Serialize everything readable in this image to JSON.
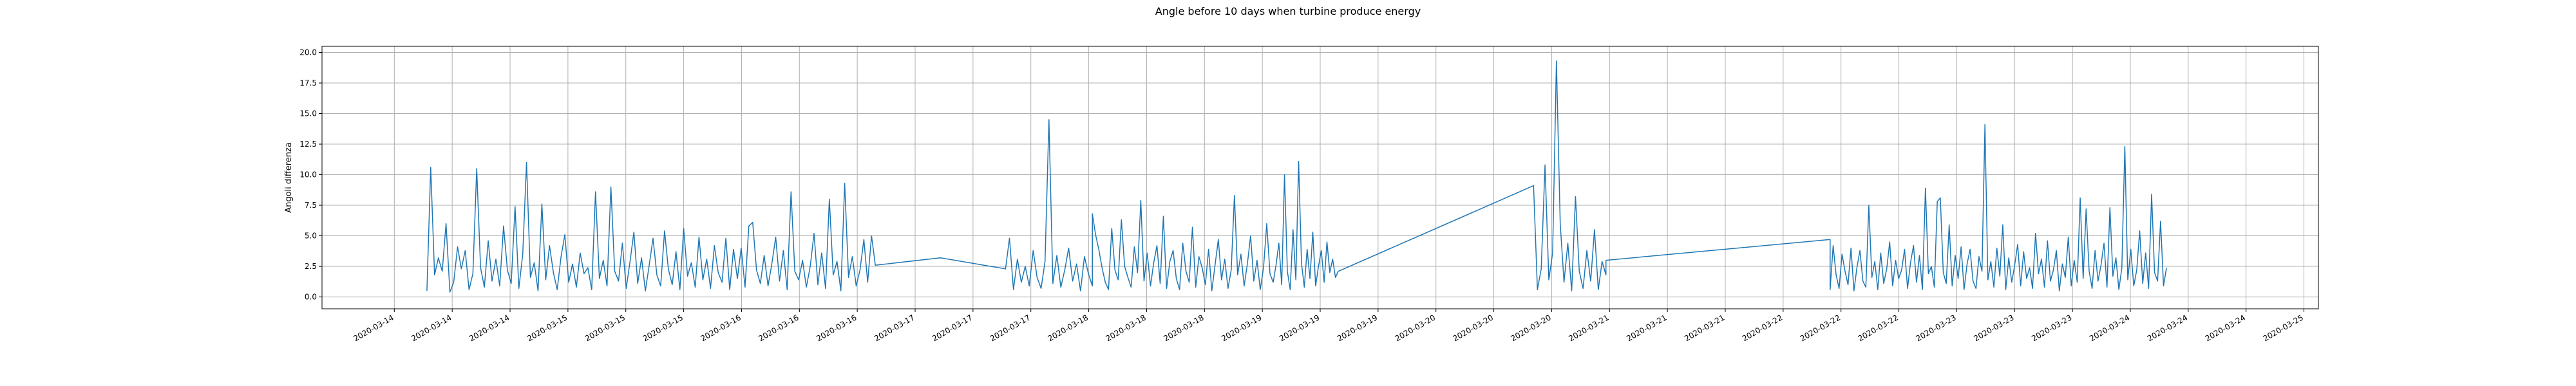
{
  "chart_data": {
    "type": "line",
    "title": "Angle before 10 days when turbine produce energy",
    "xlabel": "",
    "ylabel": "Angoli differenza",
    "grid": true,
    "ylim": [
      -0.97,
      20.5
    ],
    "yticks": [
      "0.0",
      "2.5",
      "5.0",
      "7.5",
      "10.0",
      "12.5",
      "15.0",
      "17.5",
      "20.0"
    ],
    "xticks": [
      "2020-03-14",
      "2020-03-14",
      "2020-03-14",
      "2020-03-15",
      "2020-03-15",
      "2020-03-15",
      "2020-03-16",
      "2020-03-16",
      "2020-03-16",
      "2020-03-17",
      "2020-03-17",
      "2020-03-17",
      "2020-03-18",
      "2020-03-18",
      "2020-03-18",
      "2020-03-19",
      "2020-03-19",
      "2020-03-19",
      "2020-03-20",
      "2020-03-20",
      "2020-03-20",
      "2020-03-21",
      "2020-03-21",
      "2020-03-21",
      "2020-03-22",
      "2020-03-22",
      "2020-03-22",
      "2020-03-23",
      "2020-03-23",
      "2020-03-23",
      "2020-03-24",
      "2020-03-24",
      "2020-03-24",
      "2020-03-25"
    ],
    "series": [
      {
        "color": "#1f77b4",
        "segments": [
          {
            "x_start": "2020-03-14 04:30",
            "x_end": "2020-03-16 18:30",
            "values": [
              0.5,
              10.6,
              1.8,
              3.2,
              2.1,
              6.0,
              0.4,
              1.2,
              4.1,
              2.3,
              3.8,
              0.6,
              1.9,
              10.5,
              2.4,
              0.8,
              4.6,
              1.3,
              3.1,
              0.9,
              5.8,
              2.2,
              1.1,
              7.4,
              0.7,
              3.5,
              11.0,
              1.6,
              2.8,
              0.5,
              7.6,
              1.4,
              4.2,
              2.0,
              0.6,
              3.3,
              5.1,
              1.2,
              2.7,
              0.8,
              3.6,
              1.9,
              2.4,
              0.6,
              8.6,
              1.5,
              3.0,
              0.9,
              9.0,
              2.1,
              1.3,
              4.4,
              0.7,
              2.9,
              5.3,
              1.1,
              3.2,
              0.5,
              2.6,
              4.8,
              1.8,
              0.9,
              5.4,
              2.3,
              1.0,
              3.7,
              0.6,
              5.6,
              1.7,
              2.8,
              0.8,
              4.9,
              1.4,
              3.1,
              0.7,
              4.2,
              2.0,
              1.2,
              4.8,
              0.6,
              3.9,
              1.5,
              4.0,
              0.8,
              5.8,
              6.1,
              2.2,
              1.1,
              3.4,
              0.9,
              2.7,
              4.9,
              1.3,
              3.8,
              0.6,
              8.6,
              2.1,
              1.4,
              3.0,
              0.8,
              2.5,
              5.2,
              1.0,
              3.6,
              0.7,
              8.0,
              1.8,
              2.9,
              0.5,
              9.3,
              1.6,
              3.3,
              0.9,
              2.2,
              4.7,
              1.2,
              5.0,
              2.6
            ]
          },
          {
            "x_start": "2020-03-16 18:30",
            "x_end": "2020-03-17 12:30",
            "values": [
              2.6,
              3.2,
              2.3
            ]
          },
          {
            "x_start": "2020-03-17 12:30",
            "x_end": "2020-03-18 00:30",
            "values": [
              2.3,
              4.8,
              0.6,
              3.1,
              1.2,
              2.5,
              0.9,
              3.8,
              1.6,
              0.7,
              2.9,
              14.5,
              1.1,
              3.4,
              0.8,
              2.2,
              4.0,
              1.3,
              2.7,
              0.5,
              3.3,
              1.9,
              0.9
            ]
          },
          {
            "x_start": "2020-03-18 00:30",
            "x_end": "2020-03-19 01:30",
            "values": [
              6.8,
              5.1,
              3.9,
              2.4,
              1.2,
              0.6,
              5.6,
              2.2,
              1.4,
              6.3,
              2.5,
              1.6,
              0.8,
              4.1,
              2.0,
              7.9,
              1.3,
              3.6,
              0.9,
              2.8,
              4.2,
              1.1,
              6.6,
              0.7,
              2.9,
              3.8,
              1.5,
              0.6,
              4.4,
              2.1,
              1.2,
              5.7,
              0.8,
              3.3,
              2.4,
              1.0,
              3.9,
              0.5,
              2.6,
              4.7,
              1.4,
              3.1,
              0.7,
              2.2,
              8.3,
              1.8,
              3.5,
              0.9,
              2.7,
              5.0,
              1.3,
              3.0,
              0.6,
              2.4,
              6.0,
              1.9,
              1.2
            ]
          },
          {
            "x_start": "2020-03-19 01:30",
            "x_end": "2020-03-19 10:30",
            "values": [
              1.2,
              2.6,
              4.4,
              1.0,
              10.0,
              2.1,
              0.6,
              5.5,
              1.4,
              11.1,
              2.8,
              0.8,
              3.9,
              1.5,
              5.3,
              0.9,
              2.5,
              3.8,
              1.2,
              4.5,
              2.0,
              3.1,
              1.6,
              2.1
            ]
          },
          {
            "x_start": "2020-03-19 10:30",
            "x_end": "2020-03-20 13:30",
            "values": [
              2.1,
              9.1
            ]
          },
          {
            "x_start": "2020-03-20 13:30",
            "x_end": "2020-03-20 23:30",
            "values": [
              9.1,
              0.6,
              2.3,
              10.8,
              1.4,
              3.6,
              19.3,
              6.0,
              1.2,
              4.4,
              0.5,
              8.2,
              2.1,
              0.7,
              3.8,
              1.3,
              5.5,
              0.6,
              2.9,
              1.8
            ]
          },
          {
            "x_start": "2020-03-20 23:30",
            "x_end": "2020-03-22 06:30",
            "values": [
              3.0,
              4.7
            ]
          },
          {
            "x_start": "2020-03-22 06:30",
            "x_end": "2020-03-24 05:00",
            "values": [
              0.6,
              4.2,
              1.8,
              0.7,
              3.5,
              2.1,
              1.0,
              4.0,
              0.5,
              2.4,
              3.8,
              1.3,
              0.8,
              7.5,
              1.6,
              2.9,
              0.6,
              3.6,
              1.1,
              2.3,
              4.5,
              0.9,
              3.0,
              1.5,
              2.2,
              3.9,
              0.7,
              2.8,
              4.2,
              1.2,
              3.4,
              0.6,
              8.9,
              1.9,
              2.5,
              0.8,
              7.8,
              8.1,
              2.0,
              1.1,
              5.9,
              0.9,
              3.4,
              1.5,
              4.1,
              0.6,
              2.7,
              3.9,
              1.3,
              0.7,
              3.3,
              2.1,
              14.1,
              1.4,
              2.9,
              0.8,
              4.0,
              1.7,
              5.9,
              0.6,
              3.2,
              1.2,
              2.6,
              4.3,
              0.9,
              3.7,
              1.5,
              2.4,
              0.7,
              5.2,
              1.9,
              3.1,
              0.8,
              4.6,
              1.3,
              2.2,
              3.8,
              0.5,
              2.7,
              1.6,
              4.9,
              0.9,
              3.0,
              1.2,
              8.1,
              1.5,
              7.2,
              2.1,
              0.7,
              3.8,
              1.3,
              2.6,
              4.4,
              0.8,
              7.3,
              1.7,
              3.2,
              0.6,
              2.4,
              12.3,
              1.4,
              3.9,
              0.9,
              2.2,
              5.4,
              1.1,
              3.6,
              0.7,
              8.4,
              2.0,
              1.3,
              6.2,
              0.9,
              2.4
            ]
          }
        ]
      }
    ]
  }
}
